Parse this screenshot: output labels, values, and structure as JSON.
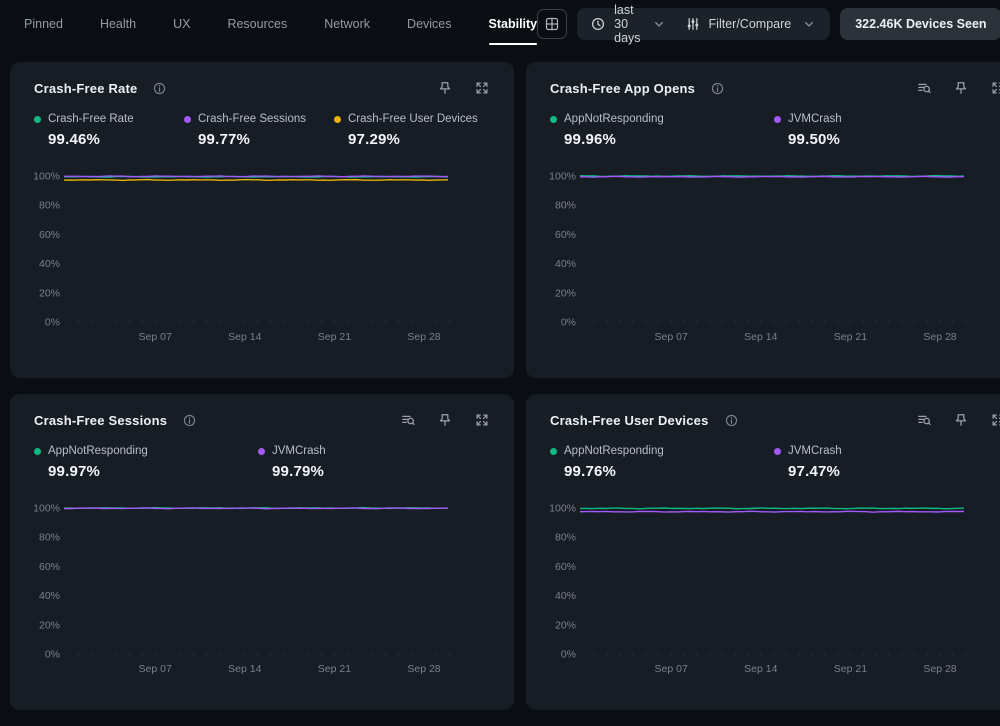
{
  "nav": {
    "tabs": [
      {
        "label": "Pinned",
        "active": false
      },
      {
        "label": "Health",
        "active": false
      },
      {
        "label": "UX",
        "active": false
      },
      {
        "label": "Resources",
        "active": false
      },
      {
        "label": "Network",
        "active": false
      },
      {
        "label": "Devices",
        "active": false
      },
      {
        "label": "Stability",
        "active": true
      }
    ]
  },
  "controls": {
    "grid_button_icon": "grid-icon",
    "time_range": {
      "icon": "clock-icon",
      "value": "last 30 days",
      "chevron": "chevron-down-icon"
    },
    "filter": {
      "icon": "sliders-icon",
      "label": "Filter/Compare",
      "chevron": "chevron-down-icon"
    },
    "devices_badge": "322.46K Devices Seen"
  },
  "colors": {
    "page_bg": "#0a0e13",
    "card_bg": "#161d25",
    "accent_green": "#10b981",
    "accent_purple": "#a259f7",
    "accent_yellow": "#eab308",
    "active_tab_underline": "#ffffff"
  },
  "cards": [
    {
      "title": "Crash-Free Rate",
      "info_icon": "info-icon",
      "action_icons": [
        "pin-icon",
        "expand-icon"
      ],
      "legend": [
        {
          "label": "Crash-Free Rate",
          "value": "99.46%",
          "color": "#10b981"
        },
        {
          "label": "Crash-Free Sessions",
          "value": "99.77%",
          "color": "#a259f7"
        },
        {
          "label": "Crash-Free User Devices",
          "value": "97.29%",
          "color": "#eab308"
        }
      ]
    },
    {
      "title": "Crash-Free App Opens",
      "info_icon": "info-icon",
      "action_icons": [
        "list-search-icon",
        "pin-icon",
        "expand-icon"
      ],
      "legend": [
        {
          "label": "AppNotResponding",
          "value": "99.96%",
          "color": "#10b981"
        },
        {
          "label": "JVMCrash",
          "value": "99.50%",
          "color": "#a259f7"
        }
      ]
    },
    {
      "title": "Crash-Free Sessions",
      "info_icon": "info-icon",
      "action_icons": [
        "list-search-icon",
        "pin-icon",
        "expand-icon"
      ],
      "legend": [
        {
          "label": "AppNotResponding",
          "value": "99.97%",
          "color": "#10b981"
        },
        {
          "label": "JVMCrash",
          "value": "99.79%",
          "color": "#a259f7"
        }
      ]
    },
    {
      "title": "Crash-Free User Devices",
      "info_icon": "info-icon",
      "action_icons": [
        "list-search-icon",
        "pin-icon",
        "expand-icon"
      ],
      "legend": [
        {
          "label": "AppNotResponding",
          "value": "99.76%",
          "color": "#10b981"
        },
        {
          "label": "JVMCrash",
          "value": "97.47%",
          "color": "#a259f7"
        }
      ]
    }
  ],
  "chart_data": [
    {
      "type": "line",
      "title": "Crash-Free Rate",
      "x_labels": [
        "Sep 07",
        "Sep 14",
        "Sep 21",
        "Sep 28"
      ],
      "x_label_days": [
        7,
        14,
        21,
        28
      ],
      "x_range_days": 30,
      "y_ticks": [
        "0%",
        "20%",
        "40%",
        "60%",
        "80%",
        "100%"
      ],
      "ylim": [
        0,
        100
      ],
      "grid": false,
      "legend_position": "top",
      "series": [
        {
          "name": "Crash-Free Rate",
          "color": "#10b981",
          "approx_value": 99.46,
          "shape": "flat"
        },
        {
          "name": "Crash-Free Sessions",
          "color": "#a259f7",
          "approx_value": 99.77,
          "shape": "flat"
        },
        {
          "name": "Crash-Free User Devices",
          "color": "#eab308",
          "approx_value": 97.29,
          "shape": "flat"
        }
      ]
    },
    {
      "type": "line",
      "title": "Crash-Free App Opens",
      "x_labels": [
        "Sep 07",
        "Sep 14",
        "Sep 21",
        "Sep 28"
      ],
      "x_label_days": [
        7,
        14,
        21,
        28
      ],
      "x_range_days": 30,
      "y_ticks": [
        "0%",
        "20%",
        "40%",
        "60%",
        "80%",
        "100%"
      ],
      "ylim": [
        0,
        100
      ],
      "grid": false,
      "legend_position": "top",
      "series": [
        {
          "name": "AppNotResponding",
          "color": "#10b981",
          "approx_value": 99.96,
          "shape": "flat"
        },
        {
          "name": "JVMCrash",
          "color": "#a259f7",
          "approx_value": 99.5,
          "shape": "flat"
        }
      ]
    },
    {
      "type": "line",
      "title": "Crash-Free Sessions",
      "x_labels": [
        "Sep 07",
        "Sep 14",
        "Sep 21",
        "Sep 28"
      ],
      "x_label_days": [
        7,
        14,
        21,
        28
      ],
      "x_range_days": 30,
      "y_ticks": [
        "0%",
        "20%",
        "40%",
        "60%",
        "80%",
        "100%"
      ],
      "ylim": [
        0,
        100
      ],
      "grid": false,
      "legend_position": "top",
      "series": [
        {
          "name": "AppNotResponding",
          "color": "#10b981",
          "approx_value": 99.97,
          "shape": "flat"
        },
        {
          "name": "JVMCrash",
          "color": "#a259f7",
          "approx_value": 99.79,
          "shape": "flat"
        }
      ]
    },
    {
      "type": "line",
      "title": "Crash-Free User Devices",
      "x_labels": [
        "Sep 07",
        "Sep 14",
        "Sep 21",
        "Sep 28"
      ],
      "x_label_days": [
        7,
        14,
        21,
        28
      ],
      "x_range_days": 30,
      "y_ticks": [
        "0%",
        "20%",
        "40%",
        "60%",
        "80%",
        "100%"
      ],
      "ylim": [
        0,
        100
      ],
      "grid": false,
      "legend_position": "top",
      "series": [
        {
          "name": "AppNotResponding",
          "color": "#10b981",
          "approx_value": 99.76,
          "shape": "flat"
        },
        {
          "name": "JVMCrash",
          "color": "#a259f7",
          "approx_value": 97.47,
          "shape": "flat"
        }
      ]
    }
  ]
}
